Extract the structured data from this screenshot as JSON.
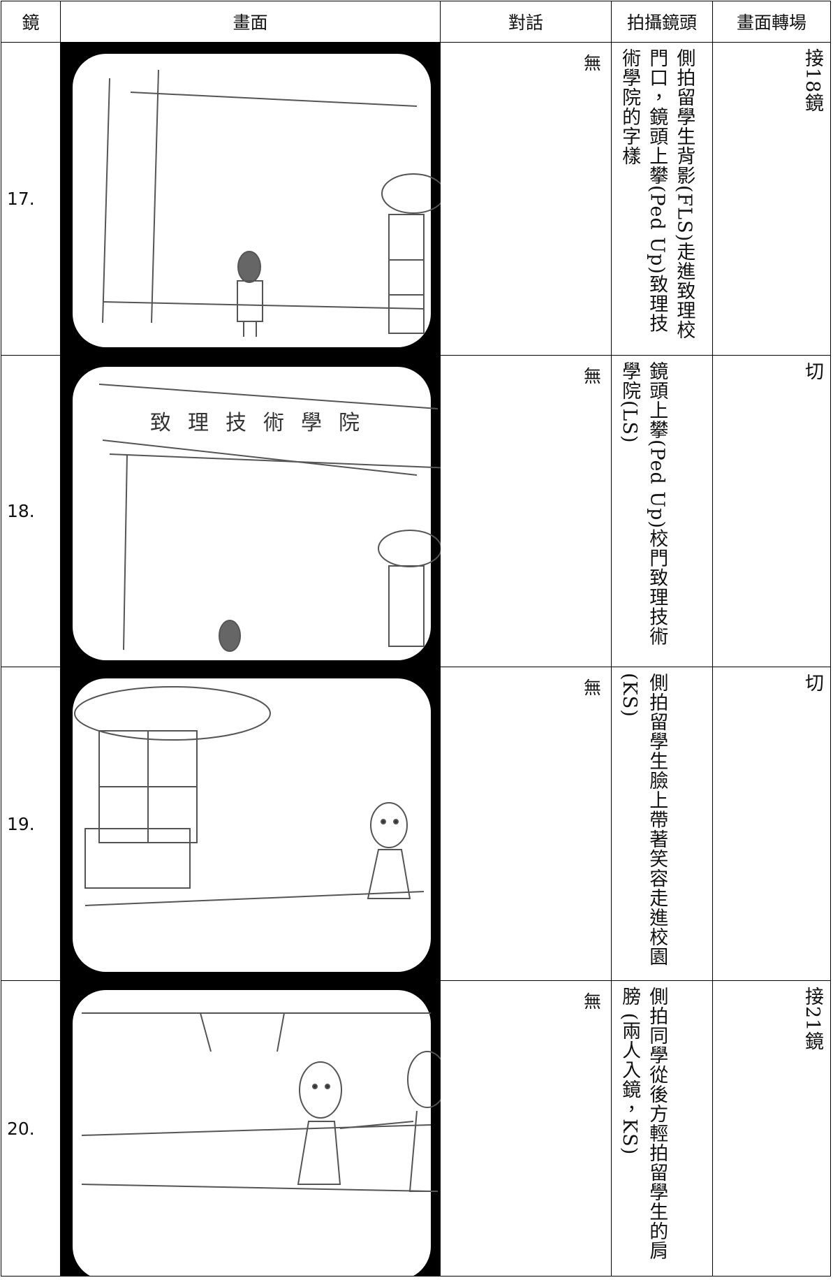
{
  "table": {
    "header": [
      "鏡",
      "畫面",
      "對話",
      "拍攝鏡頭",
      "畫面轉場"
    ],
    "rows": [
      {
        "shot": "17.",
        "dialogue": "無",
        "camera": "側拍留學生背影(FLS)走進致理校門口，鏡頭上攀(Ped Up)致理技術學院的字樣",
        "transition": "接18鏡"
      },
      {
        "shot": "18.",
        "sketch_text": "致理技術學院",
        "dialogue": "無",
        "camera": "鏡頭上攀(Ped Up)校門致理技術學院(LS)",
        "transition": "切"
      },
      {
        "shot": "19.",
        "dialogue": "無",
        "camera": "側拍留學生臉上帶著笑容走進校園 (KS)",
        "transition": "切"
      },
      {
        "shot": "20.",
        "dialogue": "無",
        "camera": "側拍同學從後方輕拍留學生的肩膀 (兩人入鏡，KS)",
        "transition": "接21鏡"
      }
    ]
  }
}
